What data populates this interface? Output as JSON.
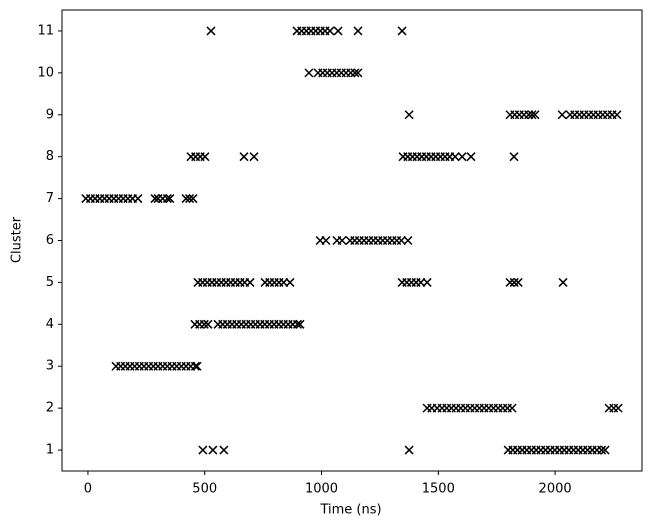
{
  "chart_data": {
    "type": "scatter",
    "xlabel": "Time (ns)",
    "ylabel": "Cluster",
    "xlim": [
      -111,
      2372
    ],
    "ylim": [
      0.5,
      11.5
    ],
    "xticks": [
      0,
      500,
      1000,
      1500,
      2000
    ],
    "yticks": [
      1,
      2,
      3,
      4,
      5,
      6,
      7,
      8,
      9,
      10,
      11
    ],
    "marker": "x",
    "series": [
      {
        "color": "#000000",
        "x": [
          527,
          895,
          915,
          935,
          955,
          975,
          995,
          1015,
          1036,
          1071,
          1156,
          1345
        ],
        "values": [
          11,
          11,
          11,
          11,
          11,
          11,
          11,
          11,
          11,
          11,
          11,
          11
        ]
      },
      {
        "color": "#000000",
        "x": [
          946,
          985,
          1005,
          1025,
          1045,
          1065,
          1085,
          1105,
          1125,
          1143,
          1156
        ],
        "values": [
          10,
          10,
          10,
          10,
          10,
          10,
          10,
          10,
          10,
          10,
          10
        ]
      },
      {
        "color": "#000000",
        "x": [
          1375,
          1807,
          1827,
          1847,
          1867,
          1887,
          1901,
          1914,
          2030,
          2064,
          2084,
          2104,
          2124,
          2144,
          2164,
          2184,
          2204,
          2224,
          2244,
          2265
        ],
        "values": [
          9,
          9,
          9,
          9,
          9,
          9,
          9,
          9,
          9,
          9,
          9,
          9,
          9,
          9,
          9,
          9,
          9,
          9,
          9,
          9
        ]
      },
      {
        "color": "#000000",
        "x": [
          441,
          461,
          481,
          501,
          668,
          711,
          1349,
          1369,
          1389,
          1409,
          1429,
          1449,
          1469,
          1489,
          1509,
          1529,
          1549,
          1572,
          1602,
          1640,
          1824
        ],
        "values": [
          8,
          8,
          8,
          8,
          8,
          8,
          8,
          8,
          8,
          8,
          8,
          8,
          8,
          8,
          8,
          8,
          8,
          8,
          8,
          8,
          8
        ]
      },
      {
        "color": "#000000",
        "x": [
          -9,
          11,
          31,
          51,
          71,
          91,
          111,
          131,
          151,
          171,
          191,
          214,
          287,
          300,
          320,
          340,
          351,
          420,
          435,
          450
        ],
        "values": [
          7,
          7,
          7,
          7,
          7,
          7,
          7,
          7,
          7,
          7,
          7,
          7,
          7,
          7,
          7,
          7,
          7,
          7,
          7,
          7
        ]
      },
      {
        "color": "#000000",
        "x": [
          994,
          1019,
          1066,
          1088,
          1122,
          1142,
          1162,
          1182,
          1202,
          1222,
          1242,
          1262,
          1282,
          1302,
          1322,
          1342,
          1370
        ],
        "values": [
          6,
          6,
          6,
          6,
          6,
          6,
          6,
          6,
          6,
          6,
          6,
          6,
          6,
          6,
          6,
          6,
          6
        ]
      },
      {
        "color": "#000000",
        "x": [
          471,
          491,
          511,
          531,
          551,
          571,
          591,
          611,
          631,
          651,
          671,
          694,
          758,
          778,
          798,
          818,
          838,
          865,
          1345,
          1365,
          1385,
          1405,
          1425,
          1452,
          1807,
          1825,
          1842,
          2034
        ],
        "values": [
          5,
          5,
          5,
          5,
          5,
          5,
          5,
          5,
          5,
          5,
          5,
          5,
          5,
          5,
          5,
          5,
          5,
          5,
          5,
          5,
          5,
          5,
          5,
          5,
          5,
          5,
          5,
          5
        ]
      },
      {
        "color": "#000000",
        "x": [
          458,
          478,
          498,
          514,
          557,
          577,
          597,
          617,
          637,
          657,
          677,
          697,
          717,
          737,
          757,
          777,
          797,
          817,
          837,
          857,
          877,
          897,
          908
        ],
        "values": [
          4,
          4,
          4,
          4,
          4,
          4,
          4,
          4,
          4,
          4,
          4,
          4,
          4,
          4,
          4,
          4,
          4,
          4,
          4,
          4,
          4,
          4,
          4
        ]
      },
      {
        "color": "#000000",
        "x": [
          120,
          140,
          160,
          180,
          200,
          220,
          240,
          260,
          280,
          300,
          320,
          340,
          360,
          380,
          400,
          420,
          440,
          460,
          467
        ],
        "values": [
          3,
          3,
          3,
          3,
          3,
          3,
          3,
          3,
          3,
          3,
          3,
          3,
          3,
          3,
          3,
          3,
          3,
          3,
          3
        ]
      },
      {
        "color": "#000000",
        "x": [
          1452,
          1472,
          1495,
          1516,
          1536,
          1556,
          1576,
          1596,
          1616,
          1636,
          1656,
          1676,
          1696,
          1716,
          1736,
          1756,
          1776,
          1796,
          1816,
          2231,
          2251,
          2270
        ],
        "values": [
          2,
          2,
          2,
          2,
          2,
          2,
          2,
          2,
          2,
          2,
          2,
          2,
          2,
          2,
          2,
          2,
          2,
          2,
          2,
          2,
          2,
          2
        ]
      },
      {
        "color": "#000000",
        "x": [
          492,
          535,
          582,
          1375,
          1799,
          1819,
          1839,
          1859,
          1879,
          1899,
          1919,
          1939,
          1959,
          1979,
          1999,
          2019,
          2039,
          2059,
          2079,
          2099,
          2119,
          2139,
          2159,
          2179,
          2199,
          2214
        ],
        "values": [
          1,
          1,
          1,
          1,
          1,
          1,
          1,
          1,
          1,
          1,
          1,
          1,
          1,
          1,
          1,
          1,
          1,
          1,
          1,
          1,
          1,
          1,
          1,
          1,
          1,
          1
        ]
      }
    ]
  }
}
